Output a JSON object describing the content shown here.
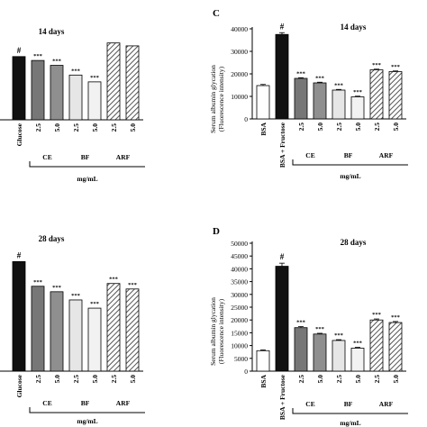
{
  "figure": {
    "colors": {
      "white": "#ffffff",
      "black": "#111111",
      "dark_gray": "#777777",
      "mid_gray": "#8f8f8f",
      "light_gray": "#e6e6e6",
      "lighter_gray": "#f2f2f2",
      "hatch": "#555555",
      "axis": "#000000"
    },
    "panel_labels": {
      "C": "C",
      "D": "D"
    },
    "unit_label": "mg/mL",
    "significance_hash": "#",
    "significance_stars": "***"
  },
  "chart_data": [
    {
      "id": "left-top",
      "type": "bar",
      "title": "14 days",
      "categories": [
        "",
        "Glucose",
        "2.5",
        "5.0",
        "2.5",
        "5.0",
        "2.5",
        "5.0"
      ],
      "values": [
        null,
        65,
        61,
        56,
        46,
        39,
        79,
        76
      ],
      "group_labels": [
        "CE",
        "BF",
        "ARF"
      ],
      "significance": [
        "",
        "#",
        "***",
        "***",
        "***",
        "***",
        "",
        ""
      ],
      "partial": true
    },
    {
      "id": "panel-C",
      "type": "bar",
      "panel_label": "C",
      "title": "14 days",
      "ylabel": "Serum albumin glycation\n(Fluorescence intensity)",
      "ylim": [
        0,
        40000
      ],
      "yticks": [
        0,
        10000,
        20000,
        30000,
        40000
      ],
      "categories": [
        "BSA",
        "BSA + Fructose",
        "2.5",
        "5.0",
        "2.5",
        "5.0",
        "2.5",
        "5.0"
      ],
      "values": [
        14800,
        37500,
        18000,
        16000,
        12800,
        9800,
        21800,
        21000
      ],
      "errors": [
        500,
        800,
        300,
        300,
        300,
        300,
        300,
        300
      ],
      "group_labels": [
        "CE",
        "BF",
        "ARF"
      ],
      "significance": [
        "",
        "#",
        "***",
        "***",
        "***",
        "***",
        "***",
        "***"
      ]
    },
    {
      "id": "left-bottom",
      "type": "bar",
      "title": "28 days",
      "categories": [
        "",
        "Glucose",
        "2.5",
        "5.0",
        "2.5",
        "5.0",
        "2.5",
        "5.0"
      ],
      "values": [
        null,
        40000,
        31000,
        29000,
        26000,
        23000,
        32000,
        30000
      ],
      "group_labels": [
        "CE",
        "BF",
        "ARF"
      ],
      "significance": [
        "",
        "#",
        "***",
        "***",
        "***",
        "***",
        "***",
        "***"
      ],
      "partial": true
    },
    {
      "id": "panel-D",
      "type": "bar",
      "panel_label": "D",
      "title": "28 days",
      "ylabel": "Serum albumin glycation\n(Fluorescence intensity)",
      "ylim": [
        0,
        50000
      ],
      "yticks": [
        0,
        5000,
        10000,
        15000,
        20000,
        25000,
        30000,
        35000,
        40000,
        45000,
        50000
      ],
      "categories": [
        "BSA",
        "BSA + Fructose",
        "2.5",
        "5.0",
        "2.5",
        "5.0",
        "2.5",
        "5.0"
      ],
      "values": [
        8000,
        41000,
        17000,
        14500,
        12000,
        9000,
        20000,
        19000
      ],
      "errors": [
        300,
        1200,
        400,
        300,
        300,
        300,
        400,
        400
      ],
      "group_labels": [
        "CE",
        "BF",
        "ARF"
      ],
      "significance": [
        "",
        "#",
        "***",
        "***",
        "***",
        "***",
        "***",
        "***"
      ]
    }
  ]
}
